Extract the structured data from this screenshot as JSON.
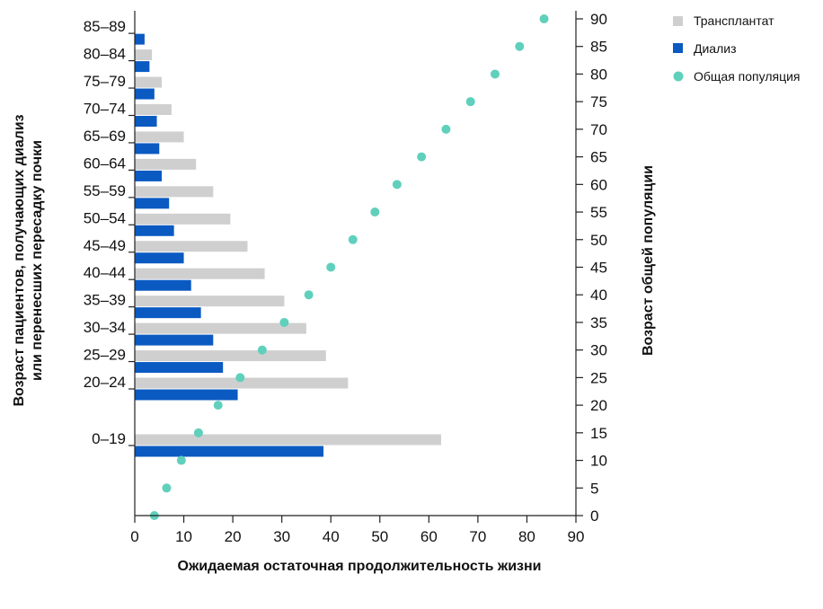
{
  "chart_data": {
    "type": "bar",
    "orientation": "horizontal",
    "categories": [
      "0–19",
      "20–24",
      "25–29",
      "30–34",
      "35–39",
      "40–44",
      "45–49",
      "50–54",
      "55–59",
      "60–64",
      "65–69",
      "70–74",
      "75–79",
      "80–84",
      "85–89"
    ],
    "series": [
      {
        "name": "Трансплантат",
        "color": "#cfcfcf",
        "values": [
          62.5,
          43.5,
          39,
          35,
          30.5,
          26.5,
          23,
          19.5,
          16,
          12.5,
          10,
          7.5,
          5.5,
          3.5,
          0
        ]
      },
      {
        "name": "Диализ",
        "color": "#0a5ac2",
        "values": [
          38.5,
          21,
          18,
          16,
          13.5,
          11.5,
          10,
          8,
          7,
          5.5,
          5,
          4.5,
          4,
          3,
          2
        ]
      }
    ],
    "scatter_series": {
      "name": "Общая популяция",
      "color": "#5fd0bb",
      "points": [
        {
          "x": 83.5,
          "y": 90
        },
        {
          "x": 78.5,
          "y": 85
        },
        {
          "x": 73.5,
          "y": 80
        },
        {
          "x": 68.5,
          "y": 75
        },
        {
          "x": 63.5,
          "y": 70
        },
        {
          "x": 58.5,
          "y": 65
        },
        {
          "x": 53.5,
          "y": 60
        },
        {
          "x": 49,
          "y": 55
        },
        {
          "x": 44.5,
          "y": 50
        },
        {
          "x": 40,
          "y": 45
        },
        {
          "x": 35.5,
          "y": 40
        },
        {
          "x": 30.5,
          "y": 35
        },
        {
          "x": 26,
          "y": 30
        },
        {
          "x": 21.5,
          "y": 25
        },
        {
          "x": 17,
          "y": 20
        },
        {
          "x": 13,
          "y": 15
        },
        {
          "x": 9.5,
          "y": 10
        },
        {
          "x": 6.5,
          "y": 5
        },
        {
          "x": 4,
          "y": 0
        }
      ]
    },
    "xlabel": "Ожидаемая остаточная продолжительность жизни",
    "ylabel_left": [
      "Возраст пациентов, получающих диализ",
      "или перенесших пересадку почки"
    ],
    "ylabel_right": "Возраст общей популяции",
    "xlim": [
      0,
      90
    ],
    "x_ticks": [
      0,
      10,
      20,
      30,
      40,
      50,
      60,
      70,
      80,
      90
    ],
    "ylim_right": [
      0,
      90
    ],
    "y_right_ticks": [
      0,
      5,
      10,
      15,
      20,
      25,
      30,
      35,
      40,
      45,
      50,
      55,
      60,
      65,
      70,
      75,
      80,
      85,
      90
    ],
    "legend_position": "top-right",
    "grid": false
  }
}
